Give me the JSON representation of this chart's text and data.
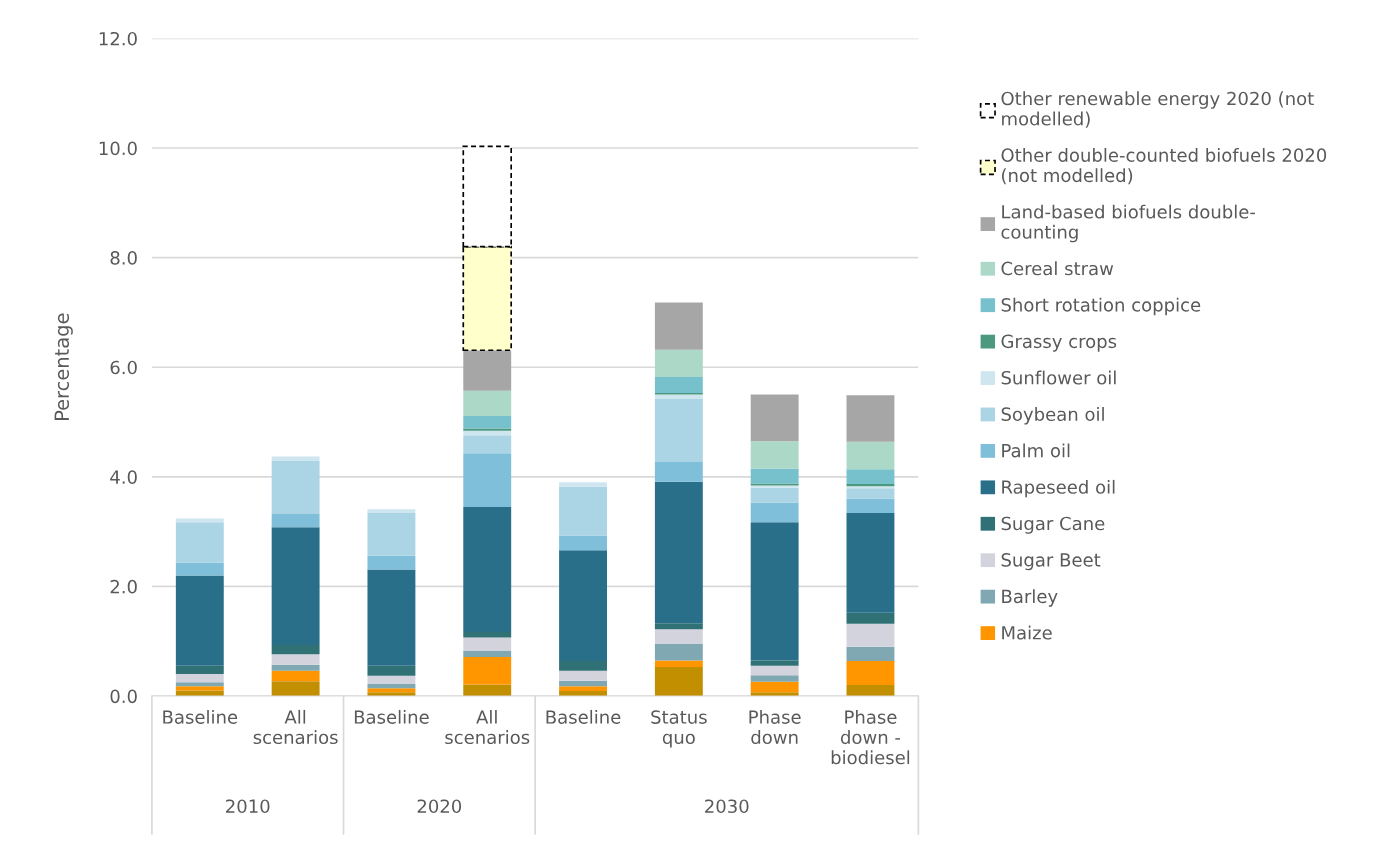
{
  "chart_data": {
    "type": "bar",
    "stacked": true,
    "ylabel": "Percentage",
    "categories": [
      "Baseline",
      "All\nscenarios",
      "Baseline",
      "All\nscenarios",
      "Baseline",
      "Status\nquo",
      "Phase\ndown",
      "Phase\ndown -\nbiodiesel"
    ],
    "ylim": [
      0,
      12
    ],
    "yticks": [
      {
        "value": 0,
        "label": "0.0"
      },
      {
        "value": 2,
        "label": "2.0"
      },
      {
        "value": 4,
        "label": "4.0"
      },
      {
        "value": 6,
        "label": "6.0"
      },
      {
        "value": 8,
        "label": "8.0"
      },
      {
        "value": 10,
        "label": "10.0"
      },
      {
        "value": 12,
        "label": "12.0"
      }
    ],
    "grid": "y",
    "legend": "right",
    "annotations": [
      "2010",
      "2020",
      "2030"
    ],
    "series": [
      {
        "color": "#c18f00",
        "values": [
          0.1,
          0.27,
          0.07,
          0.21,
          0.09,
          0.53,
          0.07,
          0.2
        ]
      },
      {
        "name": "Maize",
        "color": "#ff9600",
        "values": [
          0.08,
          0.19,
          0.07,
          0.5,
          0.09,
          0.12,
          0.19,
          0.44
        ]
      },
      {
        "name": "Barley",
        "color": "#7fa8b2",
        "values": [
          0.07,
          0.11,
          0.08,
          0.11,
          0.1,
          0.3,
          0.12,
          0.26
        ]
      },
      {
        "name": "Sugar Beet",
        "color": "#d3d3dd",
        "values": [
          0.15,
          0.19,
          0.15,
          0.25,
          0.18,
          0.27,
          0.17,
          0.42
        ]
      },
      {
        "name": "Sugar Cane",
        "color": "#2f7175",
        "values": [
          0.15,
          0.17,
          0.18,
          0.1,
          0.18,
          0.11,
          0.1,
          0.2
        ]
      },
      {
        "name": "Rapeseed oil",
        "color": "#296f8a",
        "values": [
          1.65,
          2.15,
          1.76,
          2.28,
          2.02,
          2.58,
          2.52,
          1.82
        ]
      },
      {
        "name": "Palm oil",
        "color": "#7fbfda",
        "values": [
          0.23,
          0.24,
          0.25,
          0.98,
          0.27,
          0.36,
          0.36,
          0.26
        ]
      },
      {
        "name": "Soybean oil",
        "color": "#abd4e5",
        "values": [
          0.74,
          0.97,
          0.78,
          0.33,
          0.89,
          1.15,
          0.27,
          0.19
        ]
      },
      {
        "name": "Sunflower oil",
        "color": "#cfe6f0",
        "values": [
          0.07,
          0.08,
          0.07,
          0.08,
          0.08,
          0.08,
          0.04,
          0.04
        ]
      },
      {
        "name": "Grassy crops",
        "color": "#4b9a7f",
        "values": [
          null,
          null,
          null,
          0.04,
          null,
          0.03,
          0.04,
          0.04
        ]
      },
      {
        "name": "Short rotation coppice",
        "color": "#76c1cc",
        "values": [
          null,
          null,
          null,
          0.23,
          null,
          0.29,
          0.27,
          0.27
        ]
      },
      {
        "name": "Cereal straw",
        "color": "#acd8c8",
        "values": [
          null,
          null,
          null,
          0.46,
          null,
          0.5,
          0.5,
          0.5
        ]
      },
      {
        "name": "Land-based biofuels double-\ncounting",
        "color": "#a6a6a6",
        "values": [
          null,
          null,
          null,
          0.74,
          null,
          0.86,
          0.85,
          0.85
        ]
      },
      {
        "name": "Other double-counted biofuels 2020\n(not modelled)",
        "color": "#ffffcc",
        "line_style": "dashed",
        "values": [
          null,
          null,
          null,
          1.89,
          null,
          null,
          null,
          null
        ]
      },
      {
        "name": "Other renewable energy 2020 (not\nmodelled)",
        "color": "#ffffff",
        "line_style": "dashed",
        "values": [
          null,
          null,
          null,
          1.83,
          null,
          null,
          null,
          null
        ]
      }
    ]
  }
}
